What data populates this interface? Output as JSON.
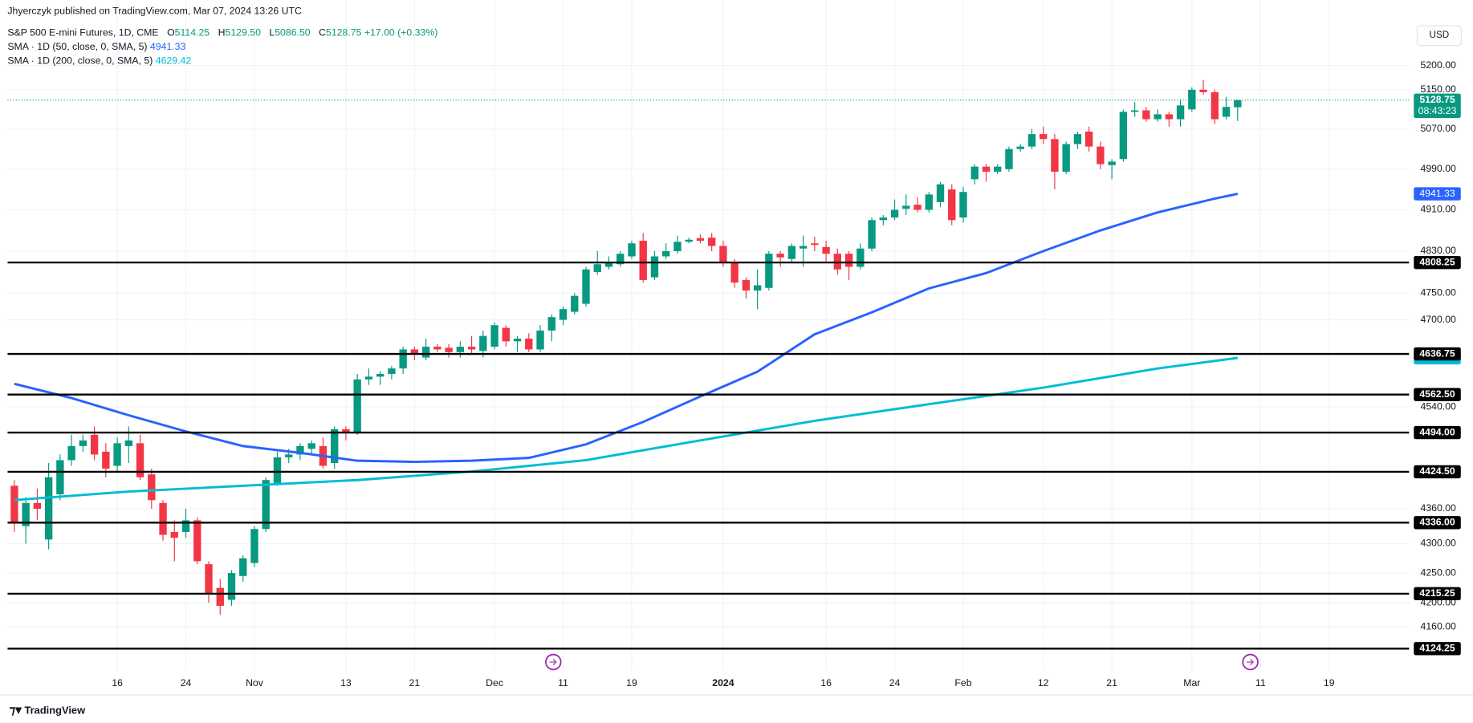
{
  "header": {
    "publisher": "Jhyerczyk published on TradingView.com, Mar 07, 2024 13:26 UTC",
    "symbol": "S&P 500 E-mini Futures, 1D, CME",
    "ohlc_labels": [
      "O",
      "H",
      "L",
      "C"
    ],
    "ohlc_values": [
      "5114.25",
      "5129.50",
      "5086.50",
      "5128.75"
    ],
    "change": "+17.00 (+0.33%)",
    "currency": "USD",
    "footer": "TradingView"
  },
  "chart_data": {
    "type": "candlestick",
    "log_scale": true,
    "grid": true,
    "up_color": "#089981",
    "down_color": "#f23645",
    "open": [
      4400,
      4330,
      4370,
      4307,
      4385,
      4445,
      4470,
      4490,
      4460,
      4435,
      4470,
      4475,
      4420,
      4370,
      4320,
      4320,
      4340,
      4265,
      4225,
      4205,
      4245,
      4267,
      4325,
      4405,
      4450,
      4455,
      4465,
      4470,
      4440,
      4500,
      4495,
      4590,
      4595,
      4600,
      4610,
      4645,
      4630,
      4650,
      4648,
      4640,
      4650,
      4642,
      4650,
      4685,
      4660,
      4665,
      4645,
      4680,
      4700,
      4715,
      4730,
      4790,
      4800,
      4805,
      4820,
      4850,
      4780,
      4820,
      4830,
      4848,
      4855,
      4856,
      4840,
      4810,
      4775,
      4755,
      4760,
      4825,
      4815,
      4835,
      4845,
      4838,
      4825,
      4825,
      4800,
      4835,
      4890,
      4895,
      4912,
      4920,
      4910,
      4925,
      4950,
      4895,
      4970,
      4995,
      4985,
      4990,
      5030,
      5035,
      5060,
      5050,
      4985,
      5040,
      5065,
      5035,
      4998,
      5010,
      5105,
      5108,
      5090,
      5100,
      5090,
      5110,
      5150,
      5145,
      5095,
      5114.25
    ],
    "high": [
      4410,
      4380,
      4395,
      4440,
      4455,
      4490,
      4490,
      4505,
      4475,
      4485,
      4505,
      4490,
      4430,
      4375,
      4340,
      4360,
      4345,
      4270,
      4240,
      4255,
      4280,
      4330,
      4415,
      4460,
      4465,
      4475,
      4480,
      4485,
      4505,
      4505,
      4600,
      4610,
      4605,
      4615,
      4650,
      4650,
      4665,
      4655,
      4655,
      4660,
      4670,
      4680,
      4695,
      4690,
      4670,
      4675,
      4690,
      4710,
      4725,
      4750,
      4800,
      4830,
      4820,
      4830,
      4850,
      4865,
      4830,
      4845,
      4860,
      4856,
      4862,
      4865,
      4850,
      4815,
      4780,
      4795,
      4830,
      4830,
      4845,
      4860,
      4858,
      4850,
      4835,
      4830,
      4845,
      4895,
      4900,
      4930,
      4940,
      4935,
      4945,
      4965,
      4960,
      4955,
      5000,
      5000,
      5000,
      5035,
      5040,
      5070,
      5075,
      5060,
      5045,
      5065,
      5075,
      5045,
      5010,
      5110,
      5125,
      5115,
      5110,
      5105,
      5130,
      5155,
      5170,
      5150,
      5135,
      5129.5
    ],
    "low": [
      4320,
      4300,
      4340,
      4290,
      4375,
      4435,
      4460,
      4445,
      4415,
      4425,
      4440,
      4410,
      4360,
      4305,
      4270,
      4310,
      4265,
      4200,
      4180,
      4195,
      4235,
      4260,
      4320,
      4400,
      4440,
      4445,
      4455,
      4430,
      4430,
      4480,
      4490,
      4580,
      4580,
      4590,
      4600,
      4625,
      4625,
      4640,
      4630,
      4630,
      4635,
      4630,
      4645,
      4650,
      4640,
      4640,
      4640,
      4660,
      4690,
      4710,
      4725,
      4785,
      4795,
      4800,
      4815,
      4770,
      4775,
      4815,
      4825,
      4845,
      4845,
      4830,
      4800,
      4760,
      4740,
      4720,
      4755,
      4800,
      4810,
      4800,
      4830,
      4810,
      4785,
      4775,
      4795,
      4830,
      4880,
      4890,
      4900,
      4905,
      4905,
      4915,
      4880,
      4885,
      4960,
      4965,
      4980,
      4985,
      5025,
      5030,
      5040,
      4950,
      4980,
      5030,
      5025,
      4990,
      4970,
      5005,
      5095,
      5085,
      5085,
      5075,
      5075,
      5105,
      5140,
      5080,
      5090,
      5086.5
    ],
    "close": [
      4335,
      4370,
      4360,
      4415,
      4445,
      4470,
      4480,
      4455,
      4430,
      4475,
      4480,
      4415,
      4375,
      4315,
      4310,
      4340,
      4270,
      4215,
      4195,
      4250,
      4275,
      4325,
      4410,
      4450,
      4455,
      4470,
      4475,
      4435,
      4500,
      4495,
      4590,
      4595,
      4600,
      4610,
      4645,
      4637,
      4650,
      4645,
      4640,
      4650,
      4645,
      4670,
      4690,
      4660,
      4665,
      4645,
      4680,
      4705,
      4720,
      4745,
      4795,
      4805,
      4810,
      4825,
      4845,
      4775,
      4820,
      4830,
      4848,
      4852,
      4850,
      4840,
      4810,
      4770,
      4755,
      4765,
      4825,
      4818,
      4840,
      4840,
      4842,
      4825,
      4795,
      4800,
      4835,
      4890,
      4895,
      4910,
      4918,
      4910,
      4940,
      4960,
      4890,
      4945,
      4995,
      4985,
      4995,
      5030,
      5035,
      5060,
      5050,
      4985,
      5040,
      5060,
      5035,
      5000,
      5005,
      5105,
      5108,
      5090,
      5100,
      5090,
      5118,
      5150,
      5145,
      5090,
      5115,
      5128.75
    ],
    "countdown": "08:43:23",
    "series": [
      {
        "name": "SMA · 1D (50, close, 0, SMA, 5)",
        "color": "#2962ff",
        "x": [
          0,
          5,
          10,
          15,
          20,
          25,
          30,
          35,
          40,
          45,
          50,
          55,
          60,
          65,
          70,
          75,
          80,
          85,
          90,
          95,
          100,
          105,
          107
        ],
        "values": [
          4582,
          4556,
          4525,
          4496,
          4470,
          4458,
          4444,
          4442,
          4444,
          4449,
          4473,
          4513,
          4559,
          4604,
          4673,
          4714,
          4759,
          4788,
          4830,
          4870,
          4905,
          4932,
          4941.33
        ]
      },
      {
        "name": "SMA · 1D (200, close, 0, SMA, 5)",
        "color": "#00bcd4",
        "x": [
          0,
          10,
          20,
          30,
          40,
          50,
          60,
          70,
          80,
          90,
          100,
          107
        ],
        "values": [
          4375,
          4390,
          4400,
          4410,
          4425,
          4445,
          4480,
          4515,
          4545,
          4575,
          4610,
          4629.42
        ]
      }
    ],
    "hlines": [
      4808.25,
      4636.75,
      4562.5,
      4494,
      4424.5,
      4336,
      4215.25,
      4124.25
    ],
    "hline_labels": [
      "4808.25",
      "4636.75",
      "4562.50",
      "4494.00",
      "4424.50",
      "4336.00",
      "4215.25",
      "4124.25"
    ],
    "hline_color": "#000000",
    "ylim": [
      4087,
      5337
    ],
    "yticks": [
      {
        "value": 4160,
        "label": "4160.00"
      },
      {
        "value": 4200,
        "label": "4200.00"
      },
      {
        "value": 4250,
        "label": "4250.00"
      },
      {
        "value": 4300,
        "label": "4300.00"
      },
      {
        "value": 4360,
        "label": "4360.00"
      },
      {
        "value": 4540,
        "label": "4540.00"
      },
      {
        "value": 4700,
        "label": "4700.00"
      },
      {
        "value": 4750,
        "label": "4750.00"
      },
      {
        "value": 4830,
        "label": "4830.00"
      },
      {
        "value": 4910,
        "label": "4910.00"
      },
      {
        "value": 4990,
        "label": "4990.00"
      },
      {
        "value": 5070,
        "label": "5070.00"
      },
      {
        "value": 5150,
        "label": "5150.00"
      },
      {
        "value": 5200,
        "label": "5200.00"
      }
    ],
    "xlim": [
      -0.6,
      122
    ],
    "xticks": [
      {
        "value": 9,
        "label": "16"
      },
      {
        "value": 15,
        "label": "24"
      },
      {
        "value": 21,
        "label": "Nov"
      },
      {
        "value": 29,
        "label": "13"
      },
      {
        "value": 35,
        "label": "21"
      },
      {
        "value": 42,
        "label": "Dec"
      },
      {
        "value": 48,
        "label": "11"
      },
      {
        "value": 54,
        "label": "19"
      },
      {
        "value": 62,
        "label": "2024"
      },
      {
        "value": 71,
        "label": "16"
      },
      {
        "value": 77,
        "label": "24"
      },
      {
        "value": 83,
        "label": "Feb"
      },
      {
        "value": 90,
        "label": "12"
      },
      {
        "value": 96,
        "label": "21"
      },
      {
        "value": 103,
        "label": "Mar"
      },
      {
        "value": 109,
        "label": "11"
      },
      {
        "value": 115,
        "label": "19"
      }
    ]
  }
}
